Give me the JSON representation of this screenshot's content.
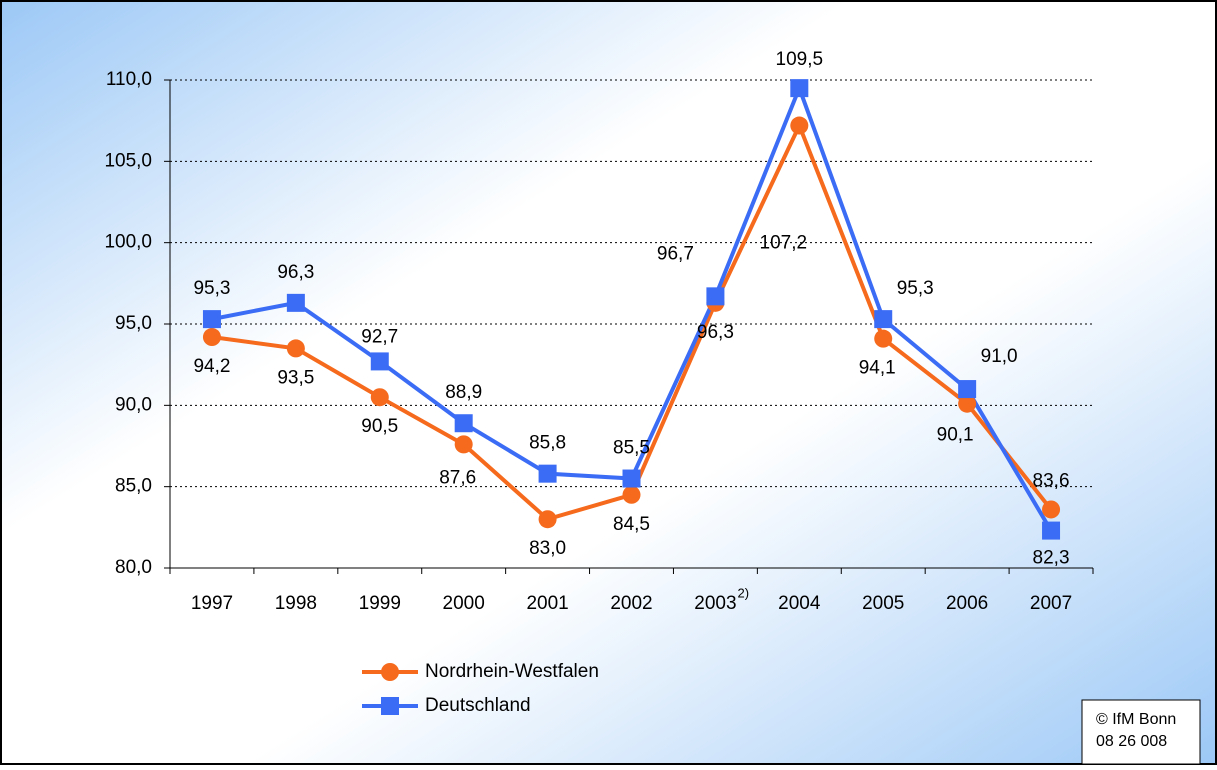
{
  "chart_data": {
    "type": "line",
    "categories": [
      "1997",
      "1998",
      "1999",
      "2000",
      "2001",
      "2002",
      "2003",
      "2004",
      "2005",
      "2006",
      "2007"
    ],
    "series": [
      {
        "name": "Nordrhein-Westfalen",
        "color": "#f56a1c",
        "marker": "circle",
        "values": [
          94.2,
          93.5,
          90.5,
          87.6,
          83.0,
          84.5,
          96.3,
          107.2,
          94.1,
          90.1,
          83.6
        ],
        "value_labels": [
          "94,2",
          "93,5",
          "90,5",
          "87,6",
          "83,0",
          "84,5",
          "96,3",
          "107,2",
          "94,1",
          "90,1",
          "83,6"
        ]
      },
      {
        "name": "Deutschland",
        "color": "#3b6cf5",
        "marker": "square",
        "values": [
          95.3,
          96.3,
          92.7,
          88.9,
          85.8,
          85.5,
          96.7,
          109.5,
          95.3,
          91.0,
          82.3
        ],
        "value_labels": [
          "95,3",
          "96,3",
          "92,7",
          "88,9",
          "85,8",
          "85,5",
          "96,7",
          "109,5",
          "95,3",
          "91,0",
          "82,3"
        ]
      }
    ],
    "ylim": [
      80,
      110
    ],
    "yticks": [
      {
        "value": 80,
        "label": "80,0"
      },
      {
        "value": 85,
        "label": "85,0"
      },
      {
        "value": 90,
        "label": "90,0"
      },
      {
        "value": 95,
        "label": "95,0"
      },
      {
        "value": 100,
        "label": "100,0"
      },
      {
        "value": 105,
        "label": "105,0"
      },
      {
        "value": 110,
        "label": "110,0"
      }
    ],
    "grid": true,
    "legend": "bottom",
    "annotations": [
      {
        "text": "2)",
        "category": "2003"
      }
    ],
    "source": [
      "© IfM Bonn",
      "08 26 008"
    ]
  }
}
